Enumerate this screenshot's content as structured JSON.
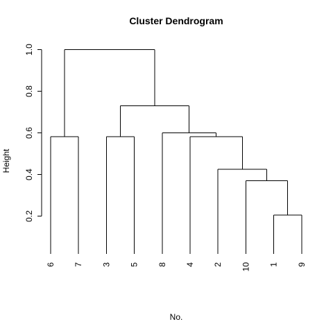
{
  "chart_data": {
    "type": "dendrogram",
    "title": "Cluster Dendrogram",
    "xlabel": "No.",
    "ylabel": "Height",
    "ylim": [
      0,
      1.0
    ],
    "yticks": [
      0.2,
      0.4,
      0.6,
      0.8,
      1.0
    ],
    "ytick_labels": [
      "0.2",
      "0.4",
      "0.6",
      "0.8",
      "1.0"
    ],
    "leaves": [
      "6",
      "7",
      "3",
      "5",
      "8",
      "4",
      "2",
      "10",
      "1",
      "9"
    ],
    "merges": [
      {
        "left": "1",
        "right": "9",
        "height": 0.205
      },
      {
        "left": "10",
        "right": "1,9",
        "height": 0.37
      },
      {
        "left": "2",
        "right": "10,1,9",
        "height": 0.425
      },
      {
        "left": "4",
        "right": "2,10,1,9",
        "height": 0.582
      },
      {
        "left": "8",
        "right": "4,2,10,1,9",
        "height": 0.6
      },
      {
        "left": "3",
        "right": "5",
        "height": 0.582
      },
      {
        "left": "3,5",
        "right": "8,4,2,10,1,9",
        "height": 0.73
      },
      {
        "left": "6",
        "right": "7",
        "height": 0.582
      },
      {
        "left": "6,7",
        "right": "3,5,8,4,2,10,1,9",
        "height": 1.0
      }
    ],
    "leaf_bottom": 0.018
  }
}
